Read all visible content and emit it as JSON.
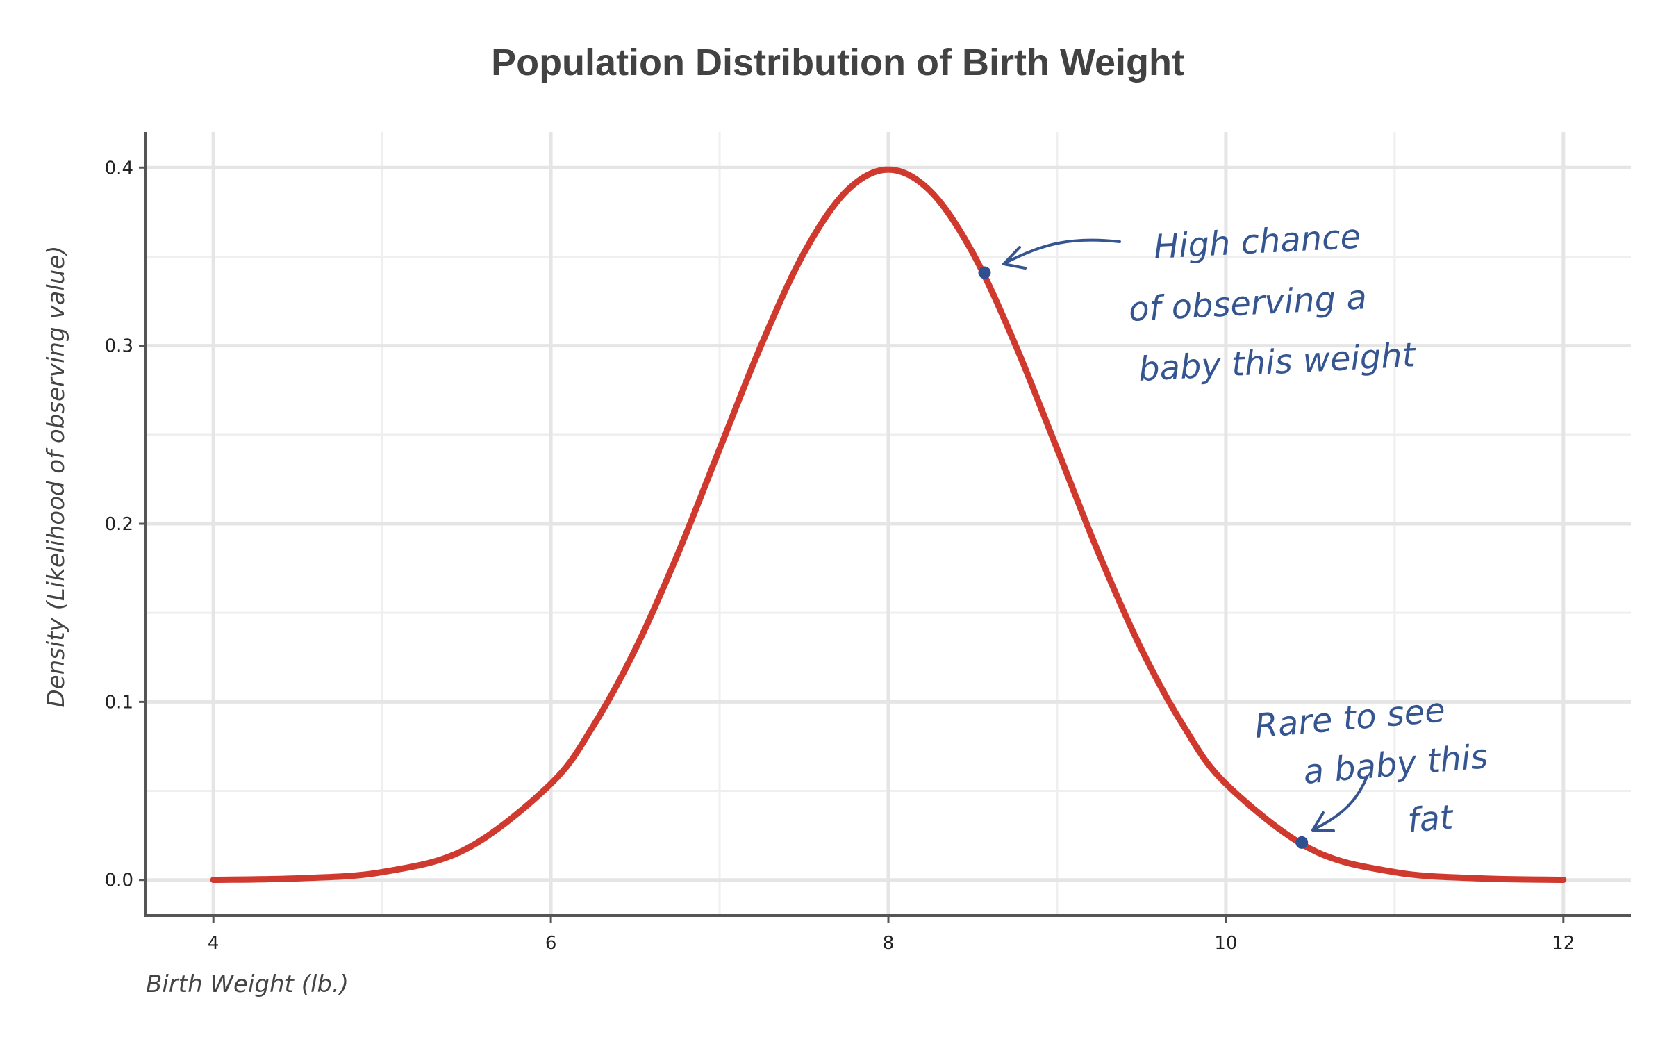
{
  "chart_data": {
    "type": "line",
    "title": "Population Distribution of Birth Weight",
    "xlabel": "Birth Weight (lb.)",
    "ylabel": "Density (Likelihood of observing value)",
    "xlim": [
      3.6,
      12.4
    ],
    "ylim": [
      -0.02,
      0.42
    ],
    "x_ticks": [
      4,
      6,
      8,
      10,
      12
    ],
    "x_tick_labels": [
      "4",
      "6",
      "8",
      "10",
      "12"
    ],
    "y_ticks": [
      0.0,
      0.1,
      0.2,
      0.3,
      0.4
    ],
    "y_tick_labels": [
      "0.0",
      "0.1",
      "0.2",
      "0.3",
      "0.4"
    ],
    "x_minor_ticks": [
      5,
      7,
      9,
      11
    ],
    "y_minor_ticks": [
      0.05,
      0.15,
      0.25,
      0.35
    ],
    "grid": true,
    "series": [
      {
        "color": "#d03a2e",
        "x": [
          4.0,
          4.5,
          5.0,
          5.5,
          6.0,
          6.25,
          6.5,
          6.75,
          7.0,
          7.25,
          7.5,
          7.75,
          8.0,
          8.25,
          8.5,
          8.75,
          9.0,
          9.25,
          9.5,
          9.75,
          10.0,
          10.5,
          11.0,
          11.5,
          12.0
        ],
        "y": [
          0.0001,
          0.0009,
          0.0044,
          0.0175,
          0.054,
          0.0863,
          0.1295,
          0.1826,
          0.242,
          0.3011,
          0.3521,
          0.3867,
          0.3989,
          0.3867,
          0.3521,
          0.3011,
          0.242,
          0.1826,
          0.1295,
          0.0863,
          0.054,
          0.0175,
          0.0044,
          0.0009,
          0.0001
        ]
      }
    ],
    "annotations": [
      {
        "lines": [
          "High chance",
          "of observing a",
          "baby this weight"
        ],
        "point": [
          8.57,
          0.341
        ],
        "color": "#355591"
      },
      {
        "lines": [
          "Rare to see",
          "a baby this",
          "fat"
        ],
        "point": [
          10.45,
          0.021
        ],
        "color": "#355591"
      }
    ]
  }
}
